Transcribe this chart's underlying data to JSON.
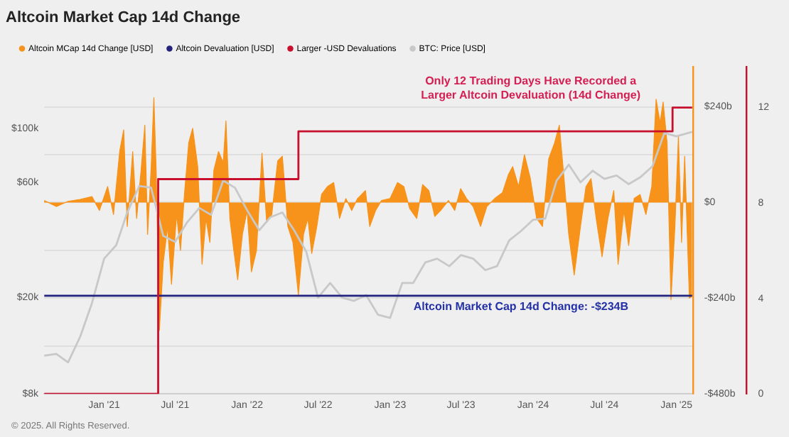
{
  "chart_data": {
    "type": "area",
    "title": "Altcoin Market Cap 14d Change",
    "annotations": [
      "Only 12 Trading Days Have Recorded a\nLarger Altcoin Devaluation (14d Change)",
      {
        "text": "Altcoin Market Cap 14d Change: -$234B",
        "x": "2023-12-01",
        "y": -234
      },
      "© 2025. All Rights Reserved."
    ],
    "series": [
      {
        "name": "Altcoin MCap 14d Change [USD]",
        "color": "#f7931a",
        "x": [
          "2020-08-01",
          "2020-09-01",
          "2020-10-01",
          "2020-11-01",
          "2020-12-01",
          "2020-12-20",
          "2021-01-10",
          "2021-01-25",
          "2021-02-10",
          "2021-02-20",
          "2021-03-01",
          "2021-03-15",
          "2021-03-25",
          "2021-04-05",
          "2021-04-15",
          "2021-04-22",
          "2021-05-01",
          "2021-05-08",
          "2021-05-14",
          "2021-05-22",
          "2021-06-01",
          "2021-06-12",
          "2021-06-22",
          "2021-07-05",
          "2021-07-15",
          "2021-07-25",
          "2021-08-05",
          "2021-08-15",
          "2021-08-28",
          "2021-09-08",
          "2021-09-18",
          "2021-09-28",
          "2021-10-08",
          "2021-10-20",
          "2021-11-01",
          "2021-11-08",
          "2021-11-18",
          "2021-11-28",
          "2021-12-08",
          "2021-12-20",
          "2022-01-01",
          "2022-01-12",
          "2022-01-25",
          "2022-02-08",
          "2022-02-20",
          "2022-03-05",
          "2022-03-20",
          "2022-04-01",
          "2022-04-15",
          "2022-04-28",
          "2022-05-12",
          "2022-05-25",
          "2022-06-05",
          "2022-06-15",
          "2022-06-28",
          "2022-07-10",
          "2022-07-25",
          "2022-08-10",
          "2022-08-25",
          "2022-09-10",
          "2022-09-25",
          "2022-10-10",
          "2022-10-30",
          "2022-11-10",
          "2022-11-25",
          "2022-12-10",
          "2023-01-01",
          "2023-01-20",
          "2023-02-05",
          "2023-02-20",
          "2023-03-10",
          "2023-03-25",
          "2023-04-10",
          "2023-04-25",
          "2023-05-10",
          "2023-05-30",
          "2023-06-15",
          "2023-06-30",
          "2023-07-15",
          "2023-08-01",
          "2023-08-20",
          "2023-09-05",
          "2023-09-25",
          "2023-10-15",
          "2023-10-30",
          "2023-11-10",
          "2023-11-25",
          "2023-12-10",
          "2023-12-25",
          "2024-01-10",
          "2024-01-25",
          "2024-02-10",
          "2024-02-25",
          "2024-03-08",
          "2024-03-20",
          "2024-04-01",
          "2024-04-15",
          "2024-05-01",
          "2024-05-15",
          "2024-05-28",
          "2024-06-10",
          "2024-06-25",
          "2024-07-10",
          "2024-07-25",
          "2024-08-05",
          "2024-08-20",
          "2024-09-01",
          "2024-09-15",
          "2024-09-30",
          "2024-10-15",
          "2024-10-30",
          "2024-11-10",
          "2024-11-20",
          "2024-11-28",
          "2024-12-08",
          "2024-12-18",
          "2024-12-28",
          "2025-01-06",
          "2025-01-14",
          "2025-01-22",
          "2025-02-03",
          "2025-02-10"
        ],
        "values": [
          5,
          -10,
          3,
          8,
          15,
          -20,
          40,
          -30,
          130,
          182,
          -60,
          128,
          -40,
          77,
          194,
          -80,
          85,
          263,
          77,
          -321,
          -150,
          -60,
          -205,
          -30,
          -120,
          20,
          150,
          186,
          90,
          -155,
          -40,
          -100,
          80,
          128,
          100,
          205,
          -40,
          -120,
          -194,
          -80,
          -20,
          -174,
          -120,
          124,
          -50,
          -30,
          104,
          116,
          -60,
          -100,
          -232,
          -80,
          -40,
          -128,
          -60,
          20,
          40,
          50,
          -40,
          10,
          -20,
          10,
          30,
          -60,
          -20,
          5,
          10,
          50,
          40,
          -15,
          -40,
          45,
          30,
          -35,
          -20,
          5,
          -20,
          35,
          10,
          -10,
          -60,
          -10,
          10,
          25,
          70,
          90,
          40,
          120,
          60,
          -40,
          -60,
          110,
          150,
          194,
          60,
          -80,
          -182,
          -60,
          40,
          60,
          -40,
          -136,
          -40,
          30,
          -155,
          -20,
          -108,
          10,
          20,
          -30,
          40,
          259,
          200,
          252,
          150,
          -244,
          -60,
          166,
          -100,
          116,
          -240,
          -234
        ]
      },
      {
        "name": "Altcoin Devaluation [USD]",
        "type": "line",
        "color": "#23237e",
        "x": [
          "2020-08-01",
          "2025-02-10"
        ],
        "values": [
          -234,
          -234
        ]
      },
      {
        "name": "Larger -USD Devaluations",
        "type": "step",
        "axis": "y3",
        "color": "#c8102e",
        "x": [
          "2020-08-01",
          "2021-05-19",
          "2022-05-12",
          "2024-12-22",
          "2025-02-10"
        ],
        "values": [
          0,
          9,
          11,
          12,
          12
        ]
      },
      {
        "name": "BTC: Price [USD]",
        "type": "line",
        "axis": "y2",
        "color": "#c8c8c8",
        "x": [
          "2020-08-01",
          "2020-09-01",
          "2020-10-01",
          "2020-11-01",
          "2020-12-01",
          "2021-01-01",
          "2021-02-01",
          "2021-03-01",
          "2021-04-01",
          "2021-05-01",
          "2021-06-01",
          "2021-07-01",
          "2021-08-01",
          "2021-09-01",
          "2021-10-01",
          "2021-11-01",
          "2021-12-01",
          "2022-01-01",
          "2022-02-01",
          "2022-03-01",
          "2022-04-01",
          "2022-05-01",
          "2022-06-01",
          "2022-07-01",
          "2022-08-01",
          "2022-09-01",
          "2022-10-01",
          "2022-11-01",
          "2022-12-01",
          "2023-01-01",
          "2023-02-01",
          "2023-03-01",
          "2023-04-01",
          "2023-05-01",
          "2023-06-01",
          "2023-07-01",
          "2023-08-01",
          "2023-09-01",
          "2023-10-01",
          "2023-11-01",
          "2023-12-01",
          "2024-01-01",
          "2024-02-01",
          "2024-03-01",
          "2024-04-01",
          "2024-05-01",
          "2024-06-01",
          "2024-07-01",
          "2024-08-01",
          "2024-09-01",
          "2024-10-01",
          "2024-11-01",
          "2024-12-01",
          "2025-01-01",
          "2025-02-10"
        ],
        "values": [
          11500,
          11700,
          10800,
          13800,
          19000,
          29000,
          33000,
          45000,
          58000,
          57000,
          36000,
          34000,
          41000,
          47000,
          44000,
          61000,
          57000,
          46000,
          38000,
          43000,
          45000,
          38000,
          31000,
          20000,
          23000,
          20000,
          19400,
          20500,
          17000,
          16500,
          23000,
          23000,
          28000,
          29000,
          27000,
          30000,
          29000,
          26000,
          27000,
          34500,
          37700,
          42000,
          42500,
          61000,
          71000,
          60000,
          67000,
          62000,
          64000,
          59000,
          63000,
          70000,
          96000,
          93000,
          97000
        ]
      }
    ],
    "xlim": [
      "2020-08-01",
      "2025-02-12"
    ],
    "xticks": [
      {
        "value": "2021-01-01",
        "label": "Jan '21"
      },
      {
        "value": "2021-07-01",
        "label": "Jul '21"
      },
      {
        "value": "2022-01-01",
        "label": "Jan '22"
      },
      {
        "value": "2022-07-01",
        "label": "Jul '22"
      },
      {
        "value": "2023-01-01",
        "label": "Jan '23"
      },
      {
        "value": "2023-07-01",
        "label": "Jul '23"
      },
      {
        "value": "2024-01-01",
        "label": "Jan '24"
      },
      {
        "value": "2024-07-01",
        "label": "Jul '24"
      },
      {
        "value": "2025-01-01",
        "label": "Jan '25"
      }
    ],
    "ylim": [
      -480,
      340
    ],
    "yticks": [
      {
        "value": -480,
        "label": "-$480b"
      },
      {
        "value": -360,
        "label": null
      },
      {
        "value": -240,
        "label": "-$240b"
      },
      {
        "value": -120,
        "label": null
      },
      {
        "value": 0,
        "label": "$0"
      },
      {
        "value": 120,
        "label": null
      },
      {
        "value": 240,
        "label": "$240b"
      }
    ],
    "y2lim": [
      8000,
      180000
    ],
    "y2ticks": [
      {
        "value": 8000,
        "label": "$8k"
      },
      {
        "value": 20000,
        "label": "$20k"
      },
      {
        "value": 60000,
        "label": "$60k"
      },
      {
        "value": 100000,
        "label": "$100k"
      }
    ],
    "y3lim": [
      0,
      13.7
    ],
    "y3ticks": [
      0,
      4,
      8,
      12
    ],
    "log": "y2",
    "grid": "y",
    "legend": "top left",
    "marker": "none",
    "line_style": "solid"
  }
}
